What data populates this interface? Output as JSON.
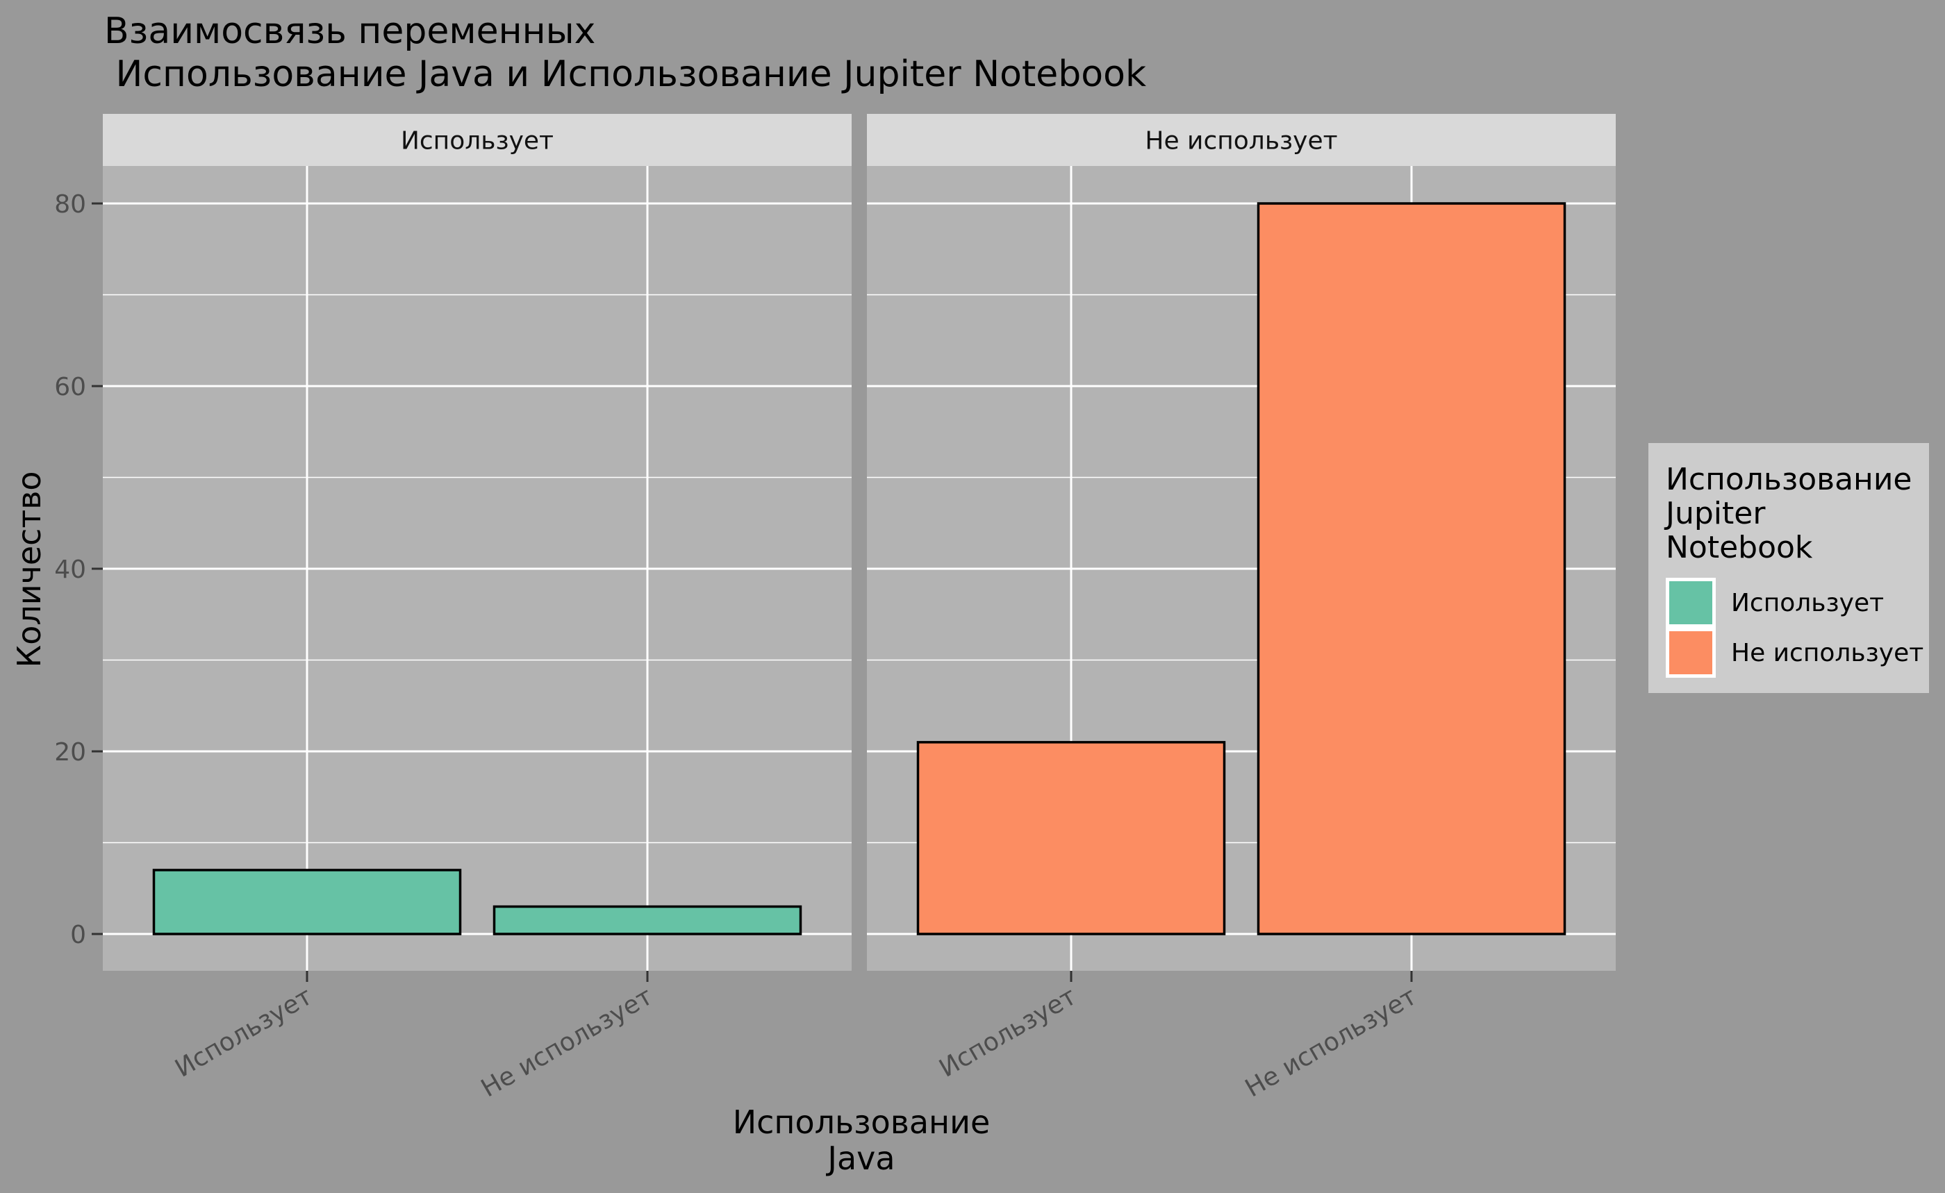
{
  "chart_data": {
    "type": "bar",
    "title_lines": [
      "Взаимосвязь переменных",
      " Использование Java и Использование Jupiter Notebook"
    ],
    "xlabel_lines": [
      "Использование",
      "Java"
    ],
    "ylabel": "Количество",
    "ylim": [
      0,
      84
    ],
    "y_ticks": [
      0,
      20,
      40,
      60,
      80
    ],
    "grid": true,
    "legend": {
      "title_lines": [
        "Использование",
        "Jupiter",
        "Notebook"
      ],
      "position": "right",
      "entries": [
        {
          "label": "Использует",
          "color": "#66c2a5"
        },
        {
          "label": "Не использует",
          "color": "#fc8d62"
        }
      ]
    },
    "categories": [
      "Использует",
      "Не использует"
    ],
    "facets": [
      {
        "label": "Использует",
        "fill": "#66c2a5",
        "values": [
          7,
          3
        ]
      },
      {
        "label": "Не использует",
        "fill": "#fc8d62",
        "values": [
          21,
          80
        ]
      }
    ],
    "colors": {
      "background": "#999999",
      "panel": "#b3b3b3",
      "strip": "#d9d9d9",
      "legend_bg": "#cccccc",
      "grid": "#ffffff",
      "bar_outline": "#000000"
    }
  }
}
